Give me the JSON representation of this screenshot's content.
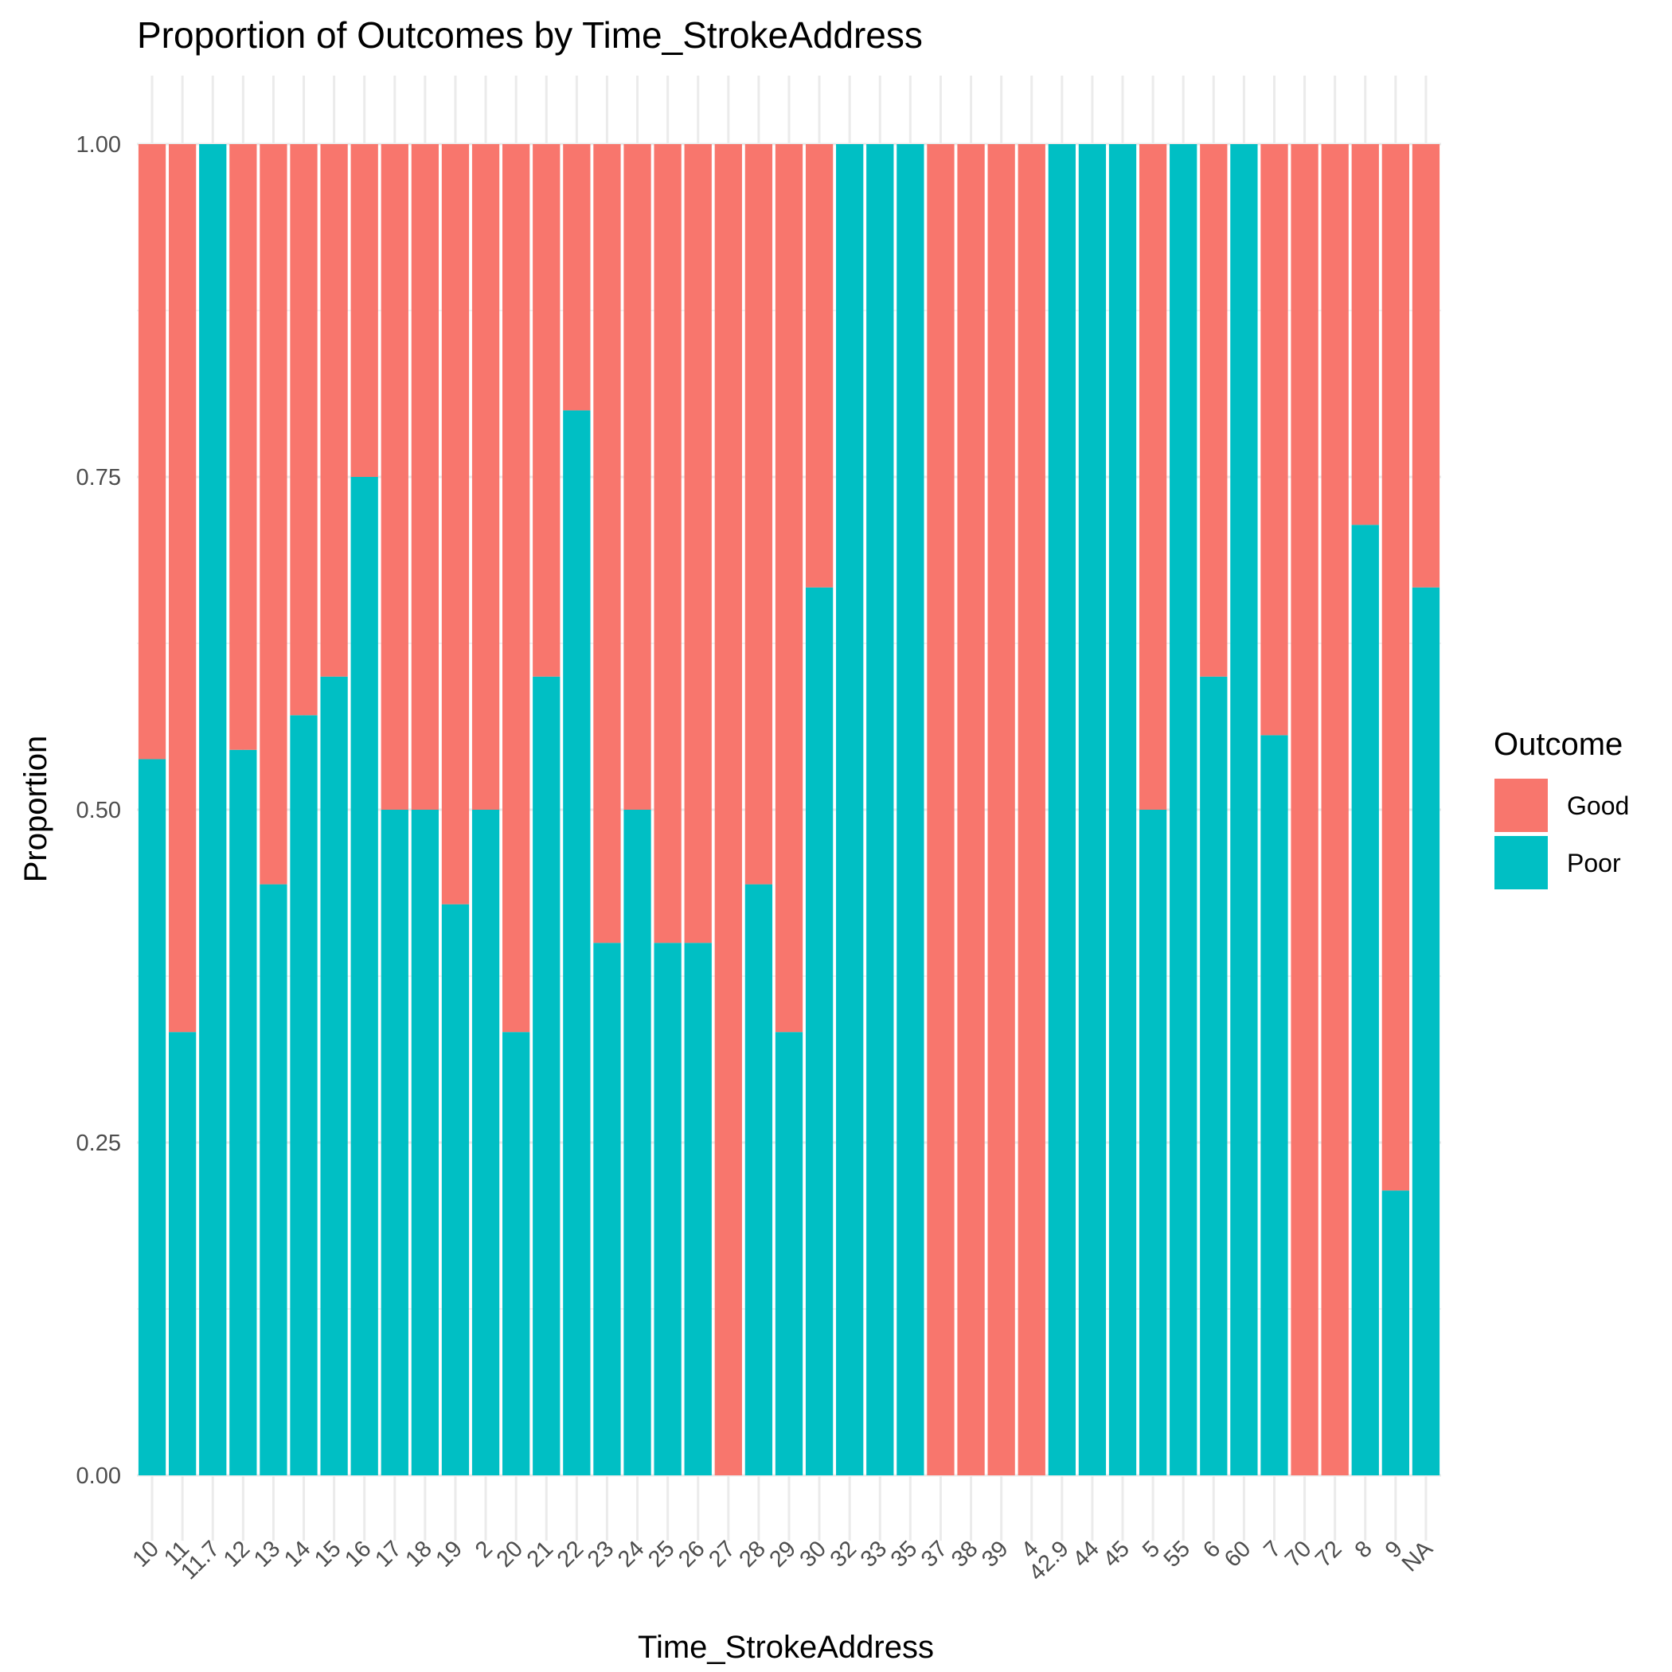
{
  "chart_data": {
    "type": "bar",
    "stacked": true,
    "title": "Proportion of Outcomes by Time_StrokeAddress",
    "xlabel": "Time_StrokeAddress",
    "ylabel": "Proportion",
    "ylim": [
      0,
      1
    ],
    "y_ticks": [
      "0.00",
      "0.25",
      "0.50",
      "0.75",
      "1.00"
    ],
    "grid": true,
    "legend": {
      "title": "Outcome",
      "position": "right",
      "entries": [
        "Good",
        "Poor"
      ]
    },
    "colors": {
      "Good": "#F8766D",
      "Poor": "#00BFC4"
    },
    "categories": [
      "10",
      "11",
      "11.7",
      "12",
      "13",
      "14",
      "15",
      "16",
      "17",
      "18",
      "19",
      "2",
      "20",
      "21",
      "22",
      "23",
      "24",
      "25",
      "26",
      "27",
      "28",
      "29",
      "30",
      "32",
      "33",
      "35",
      "37",
      "38",
      "39",
      "4",
      "42.9",
      "44",
      "45",
      "5",
      "55",
      "6",
      "60",
      "7",
      "70",
      "72",
      "8",
      "9",
      "NA"
    ],
    "series": [
      {
        "name": "Good",
        "values": [
          0.462,
          0.667,
          0.0,
          0.455,
          0.556,
          0.429,
          0.4,
          0.25,
          0.5,
          0.5,
          0.571,
          0.5,
          0.667,
          0.4,
          0.2,
          0.6,
          0.5,
          0.6,
          0.6,
          1.0,
          0.556,
          0.667,
          0.333,
          0.0,
          0.0,
          0.0,
          1.0,
          1.0,
          1.0,
          1.0,
          0.0,
          0.0,
          0.0,
          0.5,
          0.0,
          0.4,
          0.0,
          0.444,
          1.0,
          1.0,
          0.286,
          0.786,
          0.333
        ]
      },
      {
        "name": "Poor",
        "values": [
          0.538,
          0.333,
          1.0,
          0.545,
          0.444,
          0.571,
          0.6,
          0.75,
          0.5,
          0.5,
          0.429,
          0.5,
          0.333,
          0.6,
          0.8,
          0.4,
          0.5,
          0.4,
          0.4,
          0.0,
          0.444,
          0.333,
          0.667,
          1.0,
          1.0,
          1.0,
          0.0,
          0.0,
          0.0,
          0.0,
          1.0,
          1.0,
          1.0,
          0.5,
          1.0,
          0.6,
          1.0,
          0.556,
          0.0,
          0.0,
          0.714,
          0.214,
          0.667
        ]
      }
    ]
  }
}
